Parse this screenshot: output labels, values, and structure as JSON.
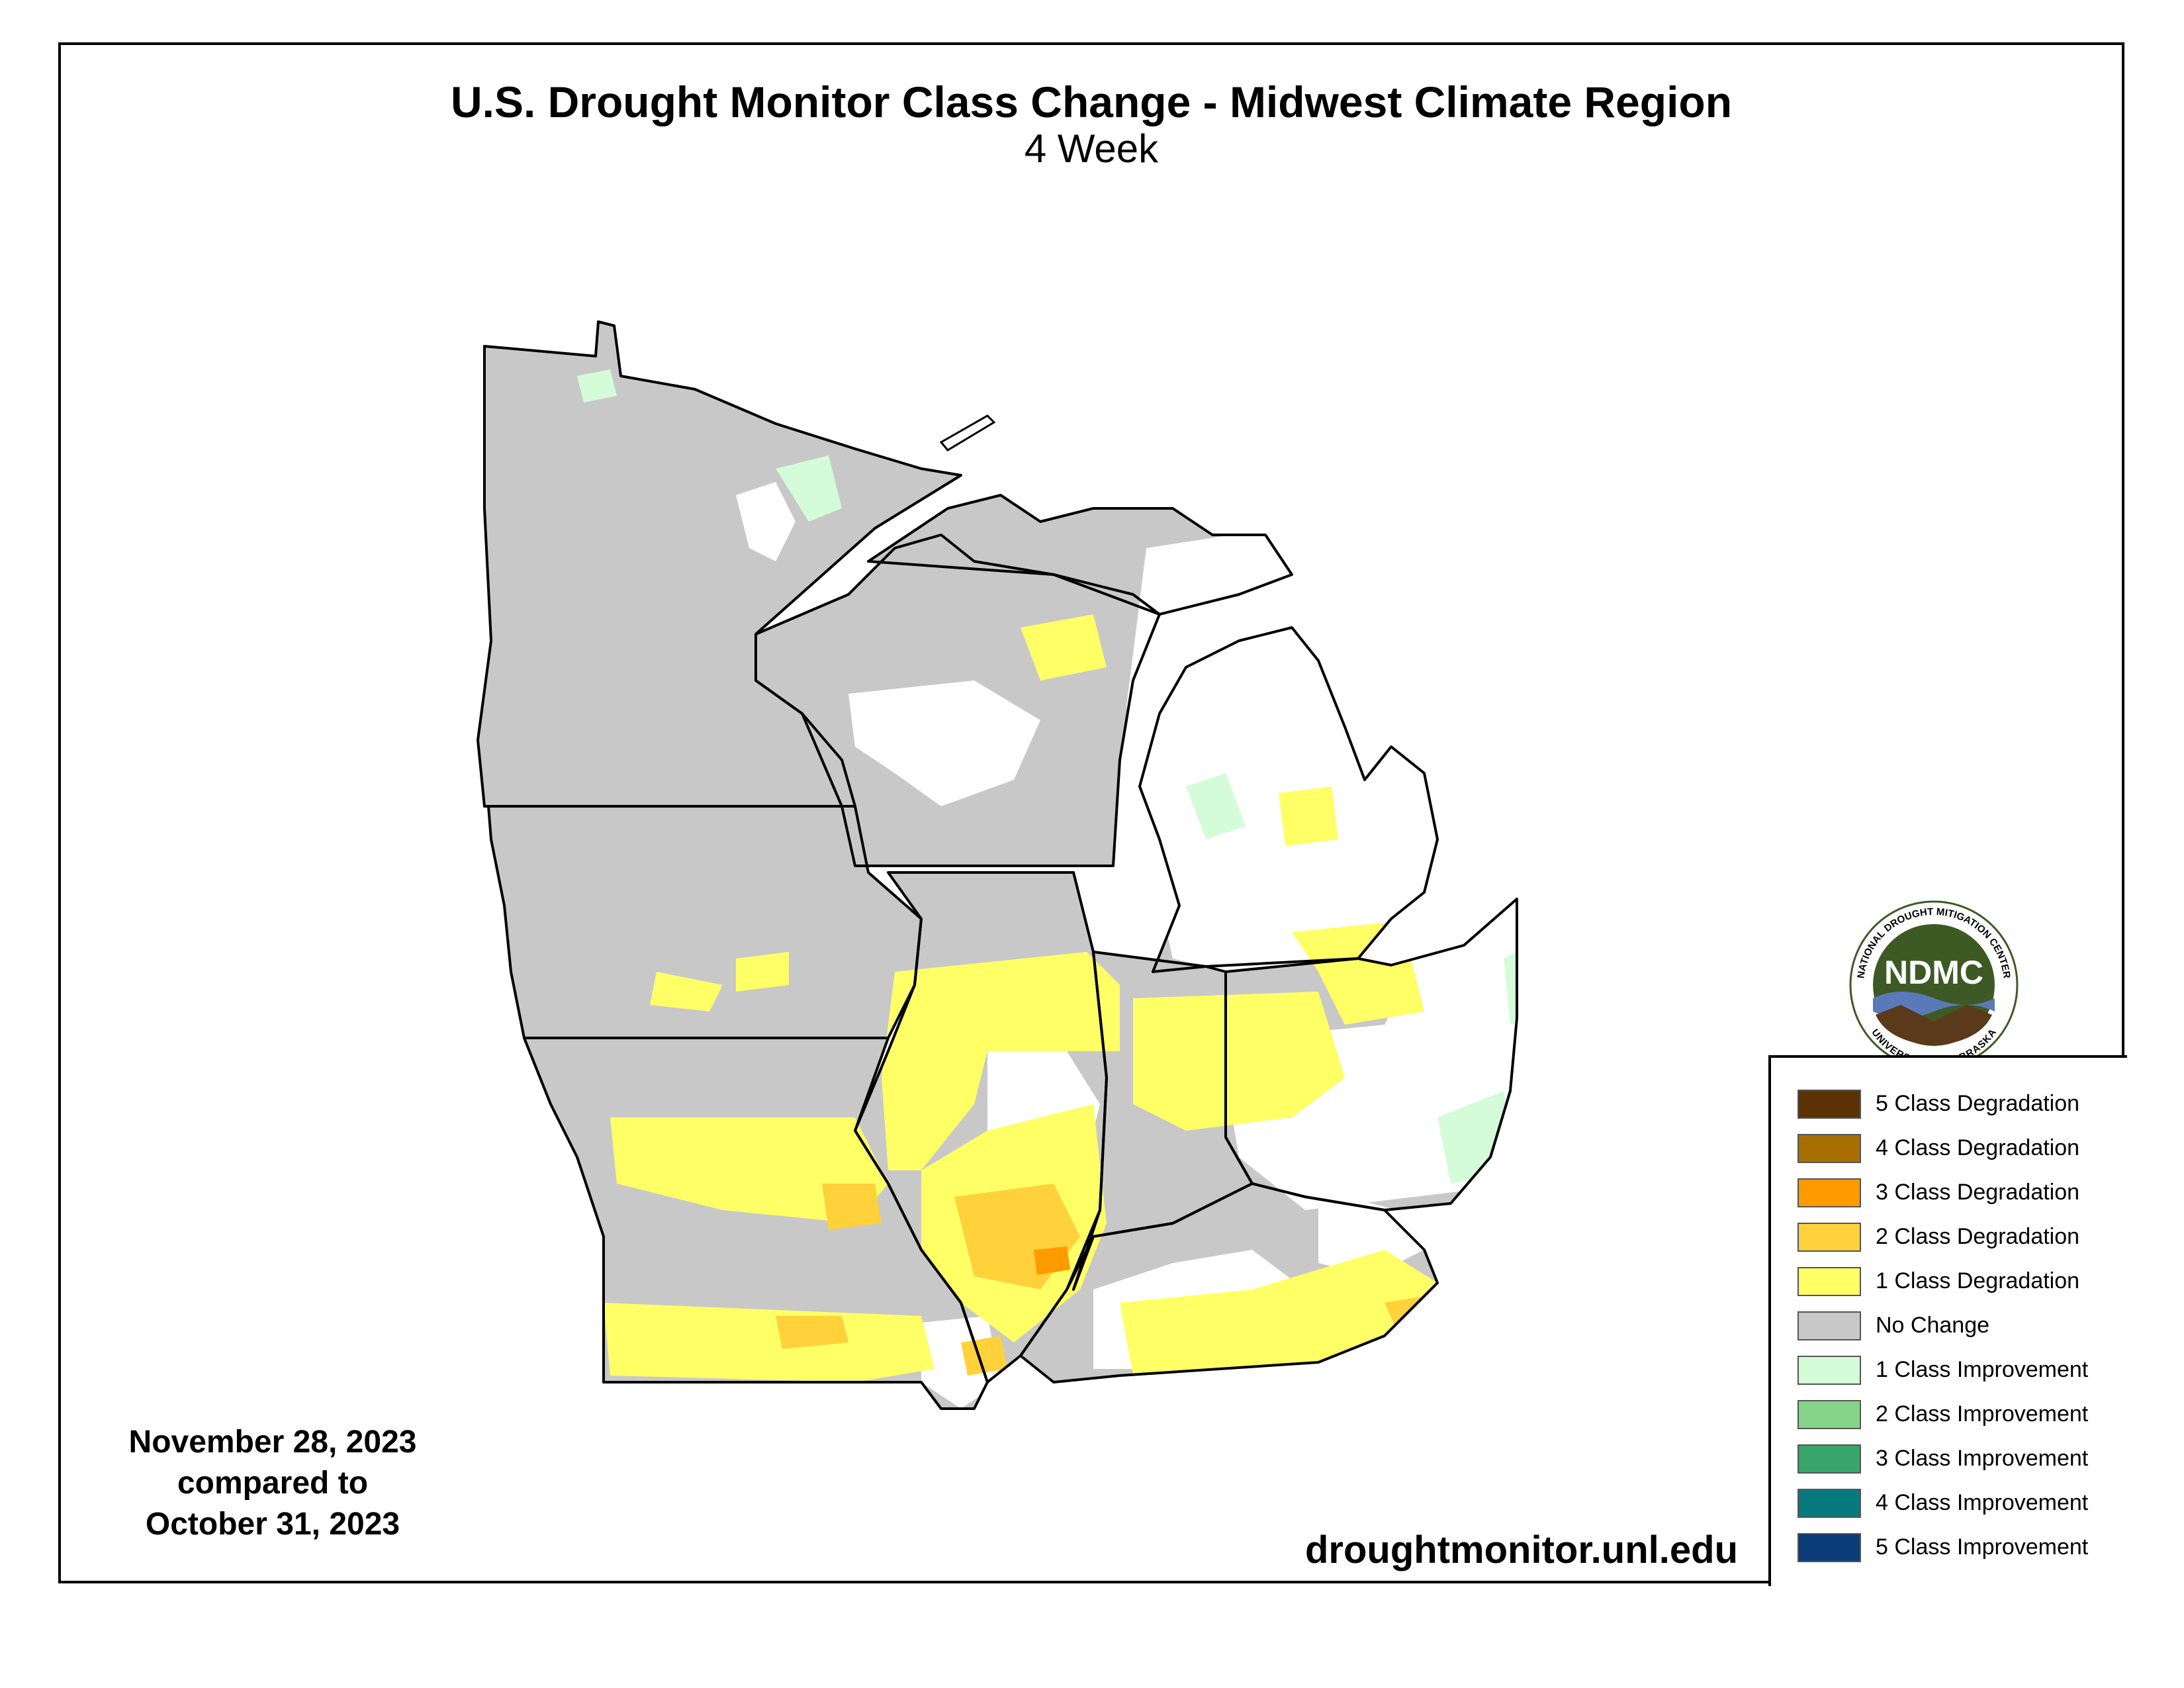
{
  "map": {
    "title": "U.S. Drought Monitor Class Change - Midwest Climate Region",
    "subtitle": "4 Week",
    "date_current": "November 28, 2023",
    "date_compare_phrase": "compared to",
    "date_previous": "October 31, 2023",
    "source_url": "droughtmonitor.unl.edu",
    "logo": {
      "abbrev": "NDMC",
      "top_text": "NATIONAL DROUGHT MITIGATION CENTER",
      "bottom_text": "UNIVERSITY OF NEBRASKA"
    }
  },
  "legend": {
    "items": [
      {
        "label": "5 Class Degradation",
        "color": "#5a3204"
      },
      {
        "label": "4 Class Degradation",
        "color": "#a86f00"
      },
      {
        "label": "3 Class Degradation",
        "color": "#ff9a00"
      },
      {
        "label": "2 Class Degradation",
        "color": "#ffd13a"
      },
      {
        "label": "1 Class Degradation",
        "color": "#ffff66"
      },
      {
        "label": "No Change",
        "color": "#c8c8c8"
      },
      {
        "label": "1 Class Improvement",
        "color": "#d4fcd8"
      },
      {
        "label": "2 Class Improvement",
        "color": "#85d48a"
      },
      {
        "label": "3 Class Improvement",
        "color": "#38a66a"
      },
      {
        "label": "4 Class Improvement",
        "color": "#087a7e"
      },
      {
        "label": "5 Class Improvement",
        "color": "#0a3c78"
      }
    ]
  },
  "colors": {
    "no_change": "#c8c8c8",
    "deg1": "#ffff66",
    "deg2": "#ffd13a",
    "deg3": "#ff9a00",
    "imp1": "#d4fcd8",
    "border": "#000000",
    "ndmc_green": "#3d5a24"
  }
}
